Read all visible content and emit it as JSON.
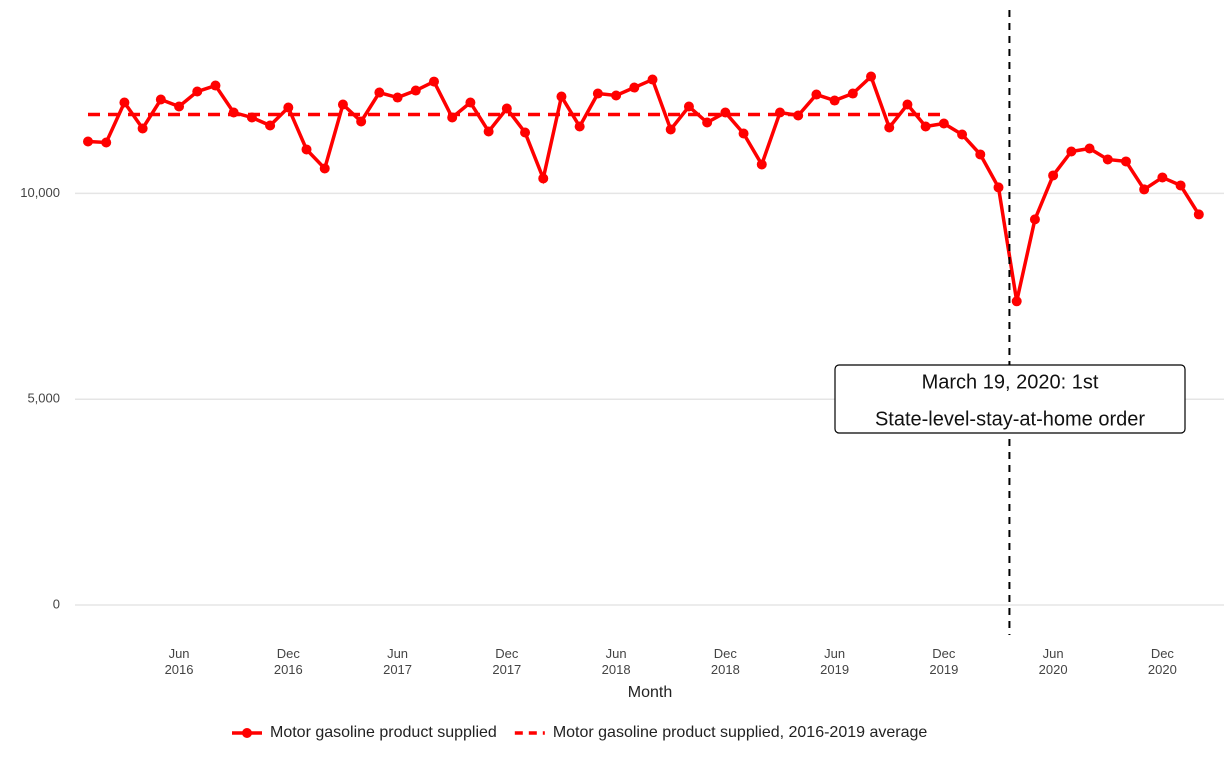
{
  "chart_data": {
    "type": "line",
    "x_label": "Month",
    "categories": [
      null,
      null,
      null,
      null,
      null,
      "Jun 2016",
      null,
      null,
      null,
      null,
      null,
      "Dec 2016",
      null,
      null,
      null,
      null,
      null,
      "Jun 2017",
      null,
      null,
      null,
      null,
      null,
      "Dec 2017",
      null,
      null,
      null,
      null,
      null,
      "Jun 2018",
      null,
      null,
      null,
      null,
      null,
      "Dec 2018",
      null,
      null,
      null,
      null,
      null,
      "Jun 2019",
      null,
      null,
      null,
      null,
      null,
      "Dec 2019",
      null,
      null,
      null,
      null,
      null,
      "Jun 2020",
      null,
      null,
      null,
      null,
      null,
      "Dec 2020",
      null,
      null
    ],
    "series": [
      {
        "name": "Motor gasoline product supplied",
        "color": "#ff0000",
        "dashed": false,
        "markers": true,
        "values": [
          11262,
          11238,
          12209,
          11578,
          12282,
          12112,
          12476,
          12621,
          11966,
          11845,
          11650,
          12087,
          11068,
          10607,
          12160,
          11748,
          12451,
          12330,
          12500,
          12718,
          11845,
          12209,
          11505,
          12063,
          11481,
          10364,
          12354,
          11626,
          12427,
          12379,
          12573,
          12767,
          11553,
          12112,
          11723,
          11966,
          11456,
          10704,
          11966,
          11893,
          12403,
          12257,
          12427,
          12840,
          11602,
          12160,
          11626,
          11699,
          11432,
          10947,
          10146,
          7379,
          9369,
          10437,
          11019,
          11092,
          10825,
          10777,
          10097,
          10388,
          10194,
          9490
        ]
      },
      {
        "name": "Motor gasoline product supplied, 2016-2019 average",
        "color": "#ff0000",
        "dashed": true,
        "markers": false,
        "values": [
          11917,
          11917,
          11917,
          11917,
          11917,
          11917,
          11917,
          11917,
          11917,
          11917,
          11917,
          11917,
          11917,
          11917,
          11917,
          11917,
          11917,
          11917,
          11917,
          11917,
          11917,
          11917,
          11917,
          11917,
          11917,
          11917,
          11917,
          11917,
          11917,
          11917,
          11917,
          11917,
          11917,
          11917,
          11917,
          11917,
          11917,
          11917,
          11917,
          11917,
          11917,
          11917,
          11917,
          11917,
          11917,
          11917,
          11917,
          11917,
          null,
          null,
          null,
          null,
          null,
          null,
          null,
          null,
          null,
          null,
          null,
          null,
          null,
          null
        ]
      }
    ],
    "ylim": [
      -730,
      14700
    ],
    "yticks": [
      0,
      {
        "value": 5000,
        "label": "5,000"
      },
      {
        "value": 10000,
        "label": "10,000"
      }
    ],
    "grid": true,
    "legend": "bottom",
    "annotation": {
      "x": 50.6,
      "lines": [
        "March 19, 2020: 1st",
        "State-level-stay-at-home order"
      ]
    }
  }
}
